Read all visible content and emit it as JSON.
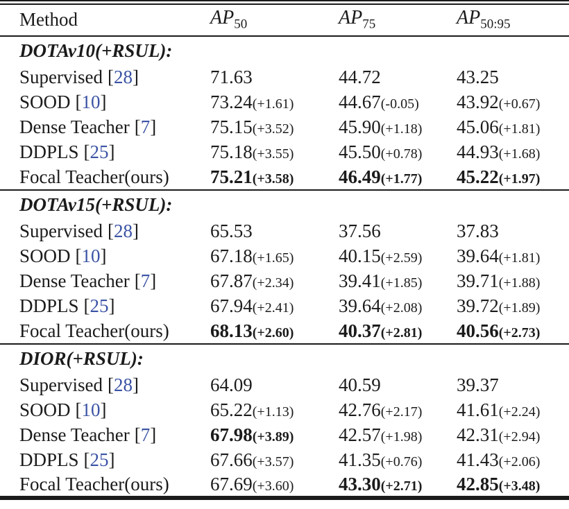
{
  "colors": {
    "text": "#1b1b1b",
    "citation": "#3a53a4",
    "rule": "#1b1b1b",
    "background": "#ffffff"
  },
  "table": {
    "header": {
      "method": "Method",
      "metrics": [
        {
          "base": "AP",
          "sub": "50"
        },
        {
          "base": "AP",
          "sub": "75"
        },
        {
          "base": "AP",
          "sub": "50:95"
        }
      ]
    },
    "sections": [
      {
        "title": "DOTAv10(+RSUL):",
        "rows": [
          {
            "method": "Supervised",
            "cite": "28",
            "cells": [
              {
                "value": "71.63",
                "delta": "",
                "bold": false
              },
              {
                "value": "44.72",
                "delta": "",
                "bold": false
              },
              {
                "value": "43.25",
                "delta": "",
                "bold": false
              }
            ]
          },
          {
            "method": "SOOD",
            "cite": "10",
            "cells": [
              {
                "value": "73.24",
                "delta": "(+1.61)",
                "bold": false
              },
              {
                "value": "44.67",
                "delta": "(-0.05)",
                "bold": false
              },
              {
                "value": "43.92",
                "delta": "(+0.67)",
                "bold": false
              }
            ]
          },
          {
            "method": "Dense Teacher",
            "cite": "7",
            "cells": [
              {
                "value": "75.15",
                "delta": "(+3.52)",
                "bold": false
              },
              {
                "value": "45.90",
                "delta": "(+1.18)",
                "bold": false
              },
              {
                "value": "45.06",
                "delta": "(+1.81)",
                "bold": false
              }
            ]
          },
          {
            "method": "DDPLS",
            "cite": "25",
            "cells": [
              {
                "value": "75.18",
                "delta": "(+3.55)",
                "bold": false
              },
              {
                "value": "45.50",
                "delta": "(+0.78)",
                "bold": false
              },
              {
                "value": "44.93",
                "delta": "(+1.68)",
                "bold": false
              }
            ]
          },
          {
            "method": "Focal Teacher(ours)",
            "cite": "",
            "cells": [
              {
                "value": "75.21",
                "delta": "(+3.58)",
                "bold": true
              },
              {
                "value": "46.49",
                "delta": "(+1.77)",
                "bold": true
              },
              {
                "value": "45.22",
                "delta": "(+1.97)",
                "bold": true
              }
            ]
          }
        ]
      },
      {
        "title": "DOTAv15(+RSUL):",
        "rows": [
          {
            "method": "Supervised",
            "cite": "28",
            "cells": [
              {
                "value": "65.53",
                "delta": "",
                "bold": false
              },
              {
                "value": "37.56",
                "delta": "",
                "bold": false
              },
              {
                "value": "37.83",
                "delta": "",
                "bold": false
              }
            ]
          },
          {
            "method": "SOOD",
            "cite": "10",
            "cells": [
              {
                "value": "67.18",
                "delta": "(+1.65)",
                "bold": false
              },
              {
                "value": "40.15",
                "delta": "(+2.59)",
                "bold": false
              },
              {
                "value": "39.64",
                "delta": "(+1.81)",
                "bold": false
              }
            ]
          },
          {
            "method": "Dense Teacher",
            "cite": "7",
            "cells": [
              {
                "value": "67.87",
                "delta": "(+2.34)",
                "bold": false
              },
              {
                "value": "39.41",
                "delta": "(+1.85)",
                "bold": false
              },
              {
                "value": "39.71",
                "delta": "(+1.88)",
                "bold": false
              }
            ]
          },
          {
            "method": "DDPLS",
            "cite": "25",
            "cells": [
              {
                "value": "67.94",
                "delta": "(+2.41)",
                "bold": false
              },
              {
                "value": "39.64",
                "delta": "(+2.08)",
                "bold": false
              },
              {
                "value": "39.72",
                "delta": "(+1.89)",
                "bold": false
              }
            ]
          },
          {
            "method": "Focal Teacher(ours)",
            "cite": "",
            "cells": [
              {
                "value": "68.13",
                "delta": "(+2.60)",
                "bold": true
              },
              {
                "value": "40.37",
                "delta": "(+2.81)",
                "bold": true
              },
              {
                "value": "40.56",
                "delta": "(+2.73)",
                "bold": true
              }
            ]
          }
        ]
      },
      {
        "title": "DIOR(+RSUL):",
        "rows": [
          {
            "method": "Supervised",
            "cite": "28",
            "cells": [
              {
                "value": "64.09",
                "delta": "",
                "bold": false
              },
              {
                "value": "40.59",
                "delta": "",
                "bold": false
              },
              {
                "value": "39.37",
                "delta": "",
                "bold": false
              }
            ]
          },
          {
            "method": "SOOD",
            "cite": "10",
            "cells": [
              {
                "value": "65.22",
                "delta": "(+1.13)",
                "bold": false
              },
              {
                "value": "42.76",
                "delta": "(+2.17)",
                "bold": false
              },
              {
                "value": "41.61",
                "delta": "(+2.24)",
                "bold": false
              }
            ]
          },
          {
            "method": "Dense Teacher",
            "cite": "7",
            "cells": [
              {
                "value": "67.98",
                "delta": "(+3.89)",
                "bold": true
              },
              {
                "value": "42.57",
                "delta": "(+1.98)",
                "bold": false
              },
              {
                "value": "42.31",
                "delta": "(+2.94)",
                "bold": false
              }
            ]
          },
          {
            "method": "DDPLS",
            "cite": "25",
            "cells": [
              {
                "value": "67.66",
                "delta": "(+3.57)",
                "bold": false
              },
              {
                "value": "41.35",
                "delta": "(+0.76)",
                "bold": false
              },
              {
                "value": "41.43",
                "delta": "(+2.06)",
                "bold": false
              }
            ]
          },
          {
            "method": "Focal Teacher(ours)",
            "cite": "",
            "cells": [
              {
                "value": "67.69",
                "delta": "(+3.60)",
                "bold": false
              },
              {
                "value": "43.30",
                "delta": "(+2.71)",
                "bold": true
              },
              {
                "value": "42.85",
                "delta": "(+3.48)",
                "bold": true
              }
            ]
          }
        ]
      }
    ]
  }
}
